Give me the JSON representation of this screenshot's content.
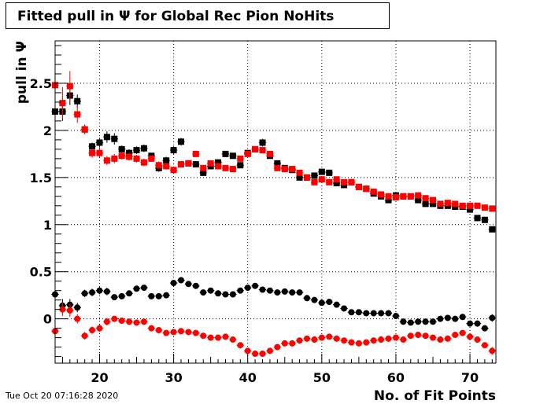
{
  "title": "Fitted pull in  Ψ  for Global Rec Pion NoHits",
  "timestamp": "Tue Oct 20 07:16:28 2020",
  "chart_data": {
    "type": "scatter",
    "title": "Fitted pull in  Ψ  for Global Rec Pion NoHits",
    "xlabel": "No. of Fit Points",
    "ylabel": "pull in  Ψ",
    "xlim": [
      14,
      73.5
    ],
    "ylim": [
      -0.47,
      2.95
    ],
    "x_ticks": [
      20,
      30,
      40,
      50,
      60,
      70
    ],
    "x_tick_labels": [
      "20",
      "30",
      "40",
      "50",
      "60",
      "70"
    ],
    "y_ticks": [
      0,
      0.5,
      1,
      1.5,
      2,
      2.5
    ],
    "y_tick_labels": [
      "0",
      "0.5",
      "1",
      "1.5",
      "2",
      "2.5"
    ],
    "grid": true,
    "series": [
      {
        "marker": "square",
        "color": "#000000",
        "x": [
          14,
          15,
          16,
          17,
          18,
          19,
          20,
          21,
          22,
          23,
          24,
          25,
          26,
          27,
          28,
          29,
          30,
          31,
          32,
          33,
          34,
          35,
          36,
          37,
          38,
          39,
          40,
          41,
          42,
          43,
          44,
          45,
          46,
          47,
          48,
          49,
          50,
          51,
          52,
          53,
          54,
          55,
          56,
          57,
          58,
          59,
          60,
          61,
          62,
          63,
          64,
          65,
          66,
          67,
          68,
          69,
          70,
          71,
          72,
          73
        ],
        "y": [
          2.2,
          2.2,
          2.37,
          2.31,
          2.01,
          1.83,
          1.87,
          1.93,
          1.91,
          1.8,
          1.76,
          1.79,
          1.81,
          1.73,
          1.6,
          1.68,
          1.79,
          1.88,
          1.65,
          1.64,
          1.55,
          1.62,
          1.66,
          1.75,
          1.73,
          1.63,
          1.76,
          1.8,
          1.87,
          1.73,
          1.65,
          1.6,
          1.58,
          1.5,
          1.5,
          1.52,
          1.56,
          1.55,
          1.44,
          1.42,
          1.45,
          1.4,
          1.38,
          1.33,
          1.3,
          1.26,
          1.31,
          1.3,
          1.3,
          1.26,
          1.22,
          1.22,
          1.2,
          1.2,
          1.19,
          1.19,
          1.16,
          1.07,
          1.05,
          0.95
        ],
        "yerr": [
          0.08,
          0.1,
          0.1,
          0.07,
          0.05,
          0.04,
          0.05,
          0.06,
          0.06,
          0.04,
          0.04,
          0.04,
          0.04,
          0.03,
          0.04,
          0.04,
          0.04,
          0.04,
          0.03,
          0.03,
          0.03,
          0.03,
          0.03,
          0.03,
          0.03,
          0.03,
          0.03,
          0.03,
          0.04,
          0.03,
          0.03,
          0.03,
          0.02,
          0.02,
          0.02,
          0.02,
          0.02,
          0.02,
          0.02,
          0.02,
          0.02,
          0.02,
          0.02,
          0.02,
          0.02,
          0.02,
          0.02,
          0.02,
          0.02,
          0.02,
          0.02,
          0.02,
          0.02,
          0.02,
          0.02,
          0.02,
          0.02,
          0.02,
          0.02,
          0.03
        ]
      },
      {
        "marker": "square",
        "color": "#ff0000",
        "x": [
          14,
          15,
          16,
          17,
          18,
          19,
          20,
          21,
          22,
          23,
          24,
          25,
          26,
          27,
          28,
          29,
          30,
          31,
          32,
          33,
          34,
          35,
          36,
          37,
          38,
          39,
          40,
          41,
          42,
          43,
          44,
          45,
          46,
          47,
          48,
          49,
          50,
          51,
          52,
          53,
          54,
          55,
          56,
          57,
          58,
          59,
          60,
          61,
          62,
          63,
          64,
          65,
          66,
          67,
          68,
          69,
          70,
          71,
          72,
          73
        ],
        "y": [
          2.48,
          2.29,
          2.47,
          2.17,
          2.01,
          1.76,
          1.76,
          1.68,
          1.7,
          1.73,
          1.72,
          1.7,
          1.66,
          1.7,
          1.63,
          1.62,
          1.58,
          1.64,
          1.65,
          1.75,
          1.6,
          1.65,
          1.62,
          1.6,
          1.59,
          1.7,
          1.75,
          1.8,
          1.79,
          1.75,
          1.6,
          1.59,
          1.59,
          1.55,
          1.5,
          1.45,
          1.48,
          1.45,
          1.48,
          1.45,
          1.45,
          1.4,
          1.38,
          1.35,
          1.32,
          1.3,
          1.29,
          1.3,
          1.3,
          1.31,
          1.28,
          1.26,
          1.22,
          1.23,
          1.22,
          1.2,
          1.2,
          1.2,
          1.18,
          1.17
        ],
        "yerr": [
          0.15,
          0.17,
          0.16,
          0.09,
          0.05,
          0.05,
          0.05,
          0.05,
          0.05,
          0.04,
          0.04,
          0.04,
          0.04,
          0.03,
          0.04,
          0.03,
          0.03,
          0.03,
          0.03,
          0.03,
          0.03,
          0.03,
          0.03,
          0.03,
          0.03,
          0.03,
          0.03,
          0.03,
          0.03,
          0.03,
          0.02,
          0.02,
          0.02,
          0.02,
          0.02,
          0.02,
          0.02,
          0.02,
          0.02,
          0.02,
          0.02,
          0.02,
          0.02,
          0.02,
          0.02,
          0.02,
          0.02,
          0.02,
          0.02,
          0.02,
          0.02,
          0.02,
          0.02,
          0.02,
          0.02,
          0.02,
          0.02,
          0.02,
          0.02,
          0.02
        ]
      },
      {
        "marker": "circle",
        "color": "#000000",
        "x": [
          14,
          15,
          16,
          17,
          18,
          19,
          20,
          21,
          22,
          23,
          24,
          25,
          26,
          27,
          28,
          29,
          30,
          31,
          32,
          33,
          34,
          35,
          36,
          37,
          38,
          39,
          40,
          41,
          42,
          43,
          44,
          45,
          46,
          47,
          48,
          49,
          50,
          51,
          52,
          53,
          54,
          55,
          56,
          57,
          58,
          59,
          60,
          61,
          62,
          63,
          64,
          65,
          66,
          67,
          68,
          69,
          70,
          71,
          72,
          73
        ],
        "y": [
          0.26,
          0.14,
          0.15,
          0.12,
          0.27,
          0.28,
          0.3,
          0.29,
          0.23,
          0.24,
          0.27,
          0.32,
          0.33,
          0.24,
          0.24,
          0.25,
          0.38,
          0.41,
          0.37,
          0.35,
          0.28,
          0.3,
          0.27,
          0.26,
          0.26,
          0.3,
          0.33,
          0.35,
          0.31,
          0.3,
          0.28,
          0.29,
          0.28,
          0.28,
          0.22,
          0.2,
          0.17,
          0.18,
          0.15,
          0.11,
          0.07,
          0.07,
          0.06,
          0.06,
          0.06,
          0.06,
          0.03,
          -0.03,
          -0.04,
          -0.03,
          -0.03,
          -0.03,
          0,
          0.01,
          0,
          0.02,
          -0.05,
          -0.05,
          -0.1,
          0.01
        ],
        "yerr": [
          0.06,
          0.07,
          0.06,
          0.05,
          0.04,
          0.04,
          0.04,
          0.04,
          0.03,
          0.03,
          0.03,
          0.03,
          0.03,
          0.03,
          0.03,
          0.03,
          0.03,
          0.03,
          0.03,
          0.03,
          0.02,
          0.02,
          0.02,
          0.02,
          0.02,
          0.02,
          0.02,
          0.02,
          0.02,
          0.02,
          0.02,
          0.02,
          0.02,
          0.02,
          0.02,
          0.02,
          0.02,
          0.02,
          0.02,
          0.02,
          0.02,
          0.02,
          0.02,
          0.02,
          0.02,
          0.02,
          0.02,
          0.02,
          0.02,
          0.02,
          0.02,
          0.02,
          0.02,
          0.02,
          0.02,
          0.02,
          0.02,
          0.02,
          0.02,
          0.04
        ]
      },
      {
        "marker": "circle",
        "color": "#ff0000",
        "x": [
          14,
          15,
          16,
          17,
          18,
          19,
          20,
          21,
          22,
          23,
          24,
          25,
          26,
          27,
          28,
          29,
          30,
          31,
          32,
          33,
          34,
          35,
          36,
          37,
          38,
          39,
          40,
          41,
          42,
          43,
          44,
          45,
          46,
          47,
          48,
          49,
          50,
          51,
          52,
          53,
          54,
          55,
          56,
          57,
          58,
          59,
          60,
          61,
          62,
          63,
          64,
          65,
          66,
          67,
          68,
          69,
          70,
          71,
          72,
          73
        ],
        "y": [
          -0.13,
          0.1,
          0.09,
          0,
          -0.18,
          -0.12,
          -0.1,
          -0.03,
          0,
          -0.02,
          -0.03,
          -0.04,
          -0.03,
          -0.1,
          -0.12,
          -0.15,
          -0.14,
          -0.13,
          -0.14,
          -0.15,
          -0.18,
          -0.2,
          -0.2,
          -0.19,
          -0.22,
          -0.28,
          -0.34,
          -0.37,
          -0.37,
          -0.34,
          -0.3,
          -0.26,
          -0.26,
          -0.23,
          -0.21,
          -0.22,
          -0.2,
          -0.19,
          -0.21,
          -0.23,
          -0.25,
          -0.26,
          -0.25,
          -0.23,
          -0.22,
          -0.21,
          -0.2,
          -0.22,
          -0.18,
          -0.17,
          -0.18,
          -0.2,
          -0.22,
          -0.21,
          -0.17,
          -0.15,
          -0.19,
          -0.22,
          -0.28,
          -0.34
        ],
        "yerr": [
          0.07,
          0.07,
          0.07,
          0.05,
          0.04,
          0.04,
          0.04,
          0.04,
          0.03,
          0.03,
          0.03,
          0.03,
          0.03,
          0.03,
          0.03,
          0.03,
          0.03,
          0.03,
          0.03,
          0.03,
          0.02,
          0.02,
          0.02,
          0.02,
          0.02,
          0.02,
          0.02,
          0.02,
          0.02,
          0.02,
          0.02,
          0.02,
          0.02,
          0.02,
          0.02,
          0.02,
          0.02,
          0.02,
          0.02,
          0.02,
          0.02,
          0.02,
          0.02,
          0.02,
          0.02,
          0.02,
          0.02,
          0.02,
          0.02,
          0.02,
          0.02,
          0.02,
          0.02,
          0.02,
          0.02,
          0.02,
          0.02,
          0.02,
          0.02,
          0.04
        ]
      }
    ]
  }
}
